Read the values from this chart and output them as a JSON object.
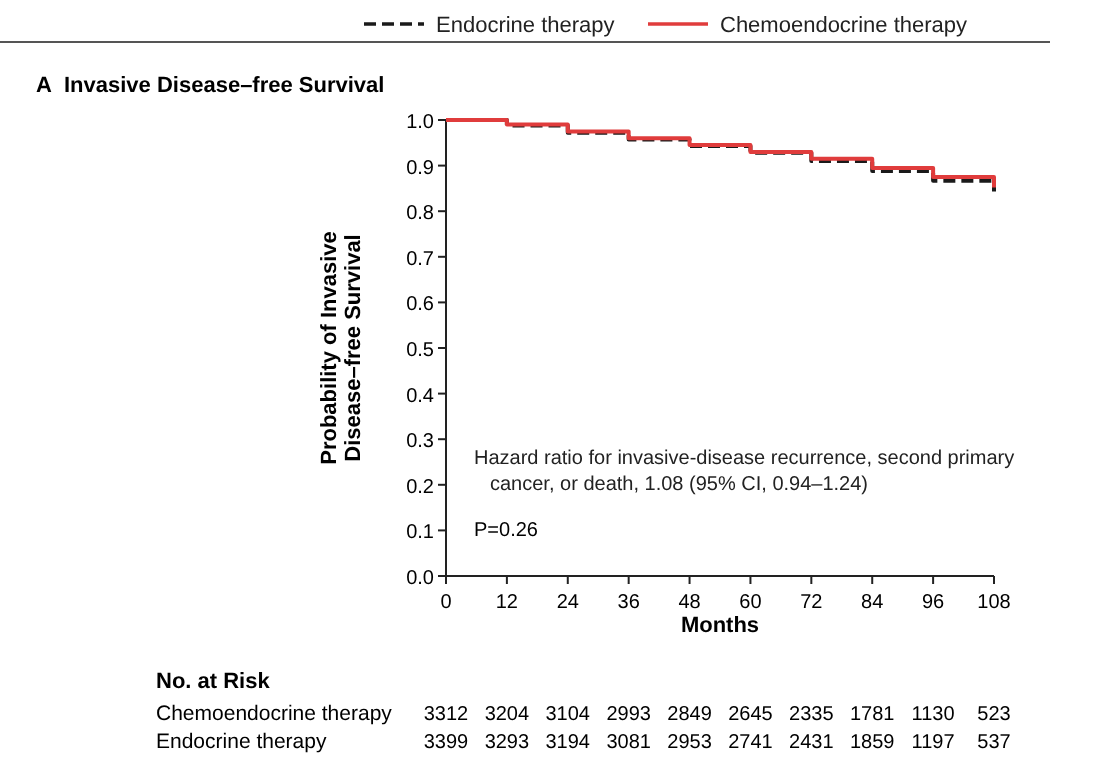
{
  "chart_data": {
    "type": "step",
    "title": "Invasive Disease–free Survival",
    "xlabel": "Months",
    "ylabel": "Probability of Invasive Disease–free Survival",
    "x": [
      0,
      12,
      24,
      36,
      48,
      60,
      72,
      84,
      96,
      108
    ],
    "series": [
      {
        "name": "Endocrine therapy",
        "color": "#1a1a1a",
        "line_style": "dashed",
        "values": [
          1.0,
          0.988,
          0.972,
          0.957,
          0.943,
          0.928,
          0.91,
          0.888,
          0.867,
          0.843
        ]
      },
      {
        "name": "Chemoendocrine therapy",
        "color": "#e03c3c",
        "line_style": "solid",
        "values": [
          1.0,
          0.99,
          0.975,
          0.96,
          0.945,
          0.93,
          0.915,
          0.895,
          0.875,
          0.852
        ]
      }
    ],
    "xlim": [
      0,
      108
    ],
    "xticks": [
      0,
      12,
      24,
      36,
      48,
      60,
      72,
      84,
      96,
      108
    ],
    "ylim": [
      0,
      1
    ],
    "yticks": [
      {
        "value": 0,
        "label": "0.0"
      },
      0.1,
      0.2,
      0.3,
      0.4,
      0.5,
      0.6,
      0.7,
      0.8,
      0.9,
      {
        "value": 1,
        "label": "1.0"
      }
    ],
    "grid": false,
    "legend": "top",
    "marker": "none",
    "annotations": [
      "A",
      "Hazard ratio for invasive-disease recurrence, second primary cancer, or death, 1.08 (95% CI, 0.94–1.24)",
      "P=0.26",
      "No. at Risk",
      "Chemoendocrine therapy",
      "3312 3204 3104 2993 2849 2645 2335 1781 1130 523",
      "Endocrine therapy",
      "3399 3293 3194 3081 2953 2741 2431 1859 1197 537"
    ]
  }
}
